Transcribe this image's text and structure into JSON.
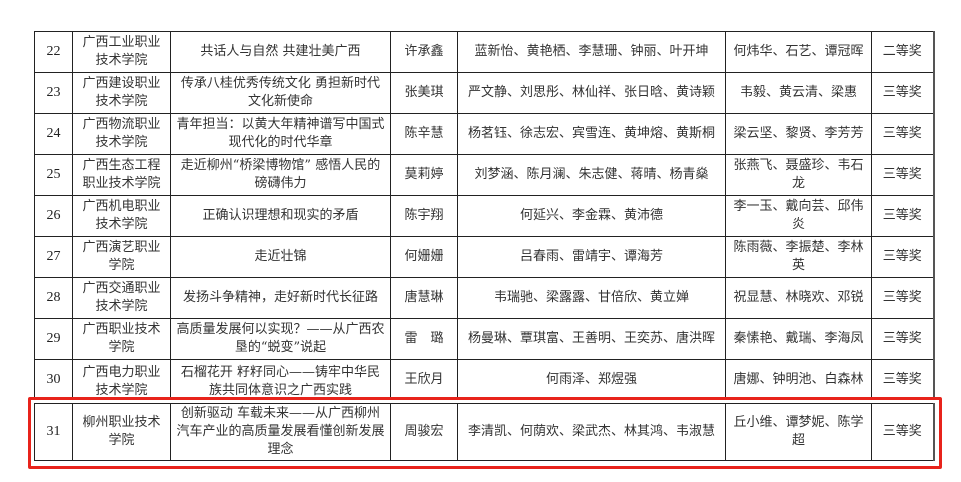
{
  "rows": [
    {
      "no": "22",
      "school": "广西工业职业技术学院",
      "title": "共话人与自然 共建壮美广西",
      "leader": "许承鑫",
      "members": "蓝新怡、黄艳栖、李慧珊、钟丽、叶开坤",
      "advisors": "何炜华、石艺、谭冠晖",
      "award": "二等奖"
    },
    {
      "no": "23",
      "school": "广西建设职业技术学院",
      "title": "传承八桂优秀传统文化 勇担新时代文化新使命",
      "leader": "张美琪",
      "members": "严文静、刘思彤、林仙祥、张日晗、黄诗颖",
      "advisors": "韦毅、黄云清、梁惠",
      "award": "三等奖"
    },
    {
      "no": "24",
      "school": "广西物流职业技术学院",
      "title": "青年担当：以黄大年精神谱写中国式现代化的时代华章",
      "leader": "陈辛慧",
      "members": "杨茗钰、徐志宏、宾雪连、黄坤熔、黄斯桐",
      "advisors": "梁云坚、黎贤、李芳芳",
      "award": "三等奖"
    },
    {
      "no": "25",
      "school": "广西生态工程职业技术学院",
      "title": "走近柳州“桥梁博物馆” 感悟人民的磅礴伟力",
      "leader": "莫莉婷",
      "members": "刘梦涵、陈月澜、朱志健、蒋晴、杨青燊",
      "advisors": "张燕飞、聂盛珍、韦石龙",
      "award": "三等奖"
    },
    {
      "no": "26",
      "school": "广西机电职业技术学院",
      "title": "正确认识理想和现实的矛盾",
      "leader": "陈宇翔",
      "members": "何延兴、李金霖、黄沛德",
      "advisors": "李一玉、戴向芸、邱伟炎",
      "award": "三等奖"
    },
    {
      "no": "27",
      "school": "广西演艺职业学院",
      "title": "走近壮锦",
      "leader": "何姗姗",
      "members": "吕春雨、雷靖宇、谭海芳",
      "advisors": "陈雨薇、李振楚、李林英",
      "award": "三等奖"
    },
    {
      "no": "28",
      "school": "广西交通职业技术学院",
      "title": "发扬斗争精神，走好新时代长征路",
      "leader": "唐慧琳",
      "members": "韦瑞驰、梁露露、甘倍欣、黄立婵",
      "advisors": "祝显慧、林晓欢、邓锐",
      "award": "三等奖"
    },
    {
      "no": "29",
      "school": "广西职业技术学院",
      "title": "高质量发展何以实现？——从广西农垦的“蜕变”说起",
      "leader": "雷　璐",
      "members": "杨曼琳、覃琪富、王善明、王奕苏、唐洪晖",
      "advisors": "秦愫艳、戴瑞、李海凤",
      "award": "三等奖"
    },
    {
      "no": "30",
      "school": "广西电力职业技术学院",
      "title": "石榴花开 籽籽同心——铸牢中华民族共同体意识之广西实践",
      "leader": "王欣月",
      "members": "何雨泽、郑煜强",
      "advisors": "唐娜、钟明池、白森林",
      "award": "三等奖"
    },
    {
      "no": "31",
      "school": "柳州职业技术学院",
      "title": "创新驱动 车载未来——从广西柳州汽车产业的高质量发展看懂创新发展理念",
      "leader": "周骏宏",
      "members": "李清凯、何荫欢、梁武杰、林其鸿、韦淑慧",
      "advisors": "丘小维、谭梦妮、陈学超",
      "award": "三等奖"
    }
  ],
  "highlight_color": "#e8231b"
}
